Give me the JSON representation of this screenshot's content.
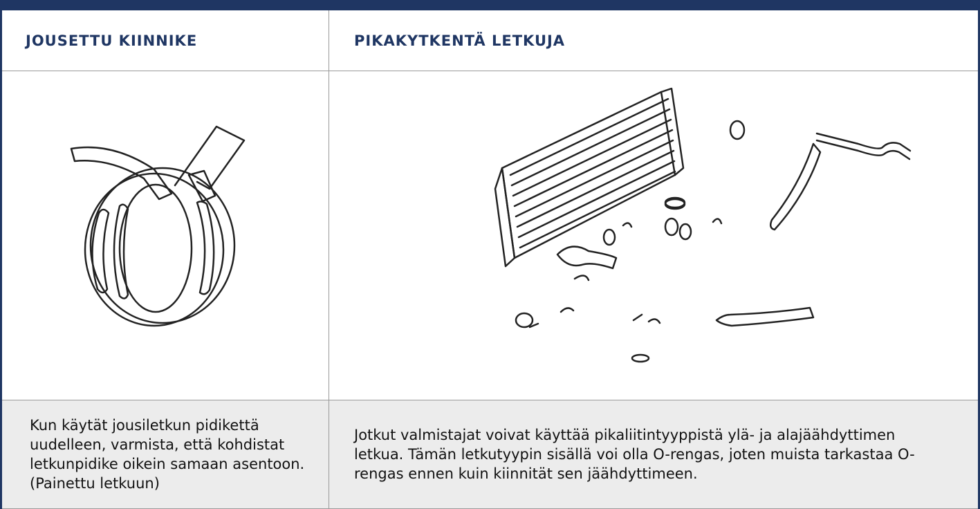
{
  "table": {
    "headers": [
      "JOUSETTU KIINNIKE",
      "PIKAKYTKENTÄ LETKUJA"
    ],
    "descriptions": [
      "Kun käytät jousiletkun pidikettä uudelleen, varmista, että kohdistat letkunpidike oikein samaan asentoon. (Painettu letkuun)",
      "Jotkut valmistajat voivat käyttää pikaliitintyyppistä ylä- ja alajäähdyttimen letkua. Tämän letkutyypin sisällä voi olla O-rengas, joten muista tarkastaa O-rengas ennen kuin kiinnität sen jäähdyttimeen."
    ]
  }
}
